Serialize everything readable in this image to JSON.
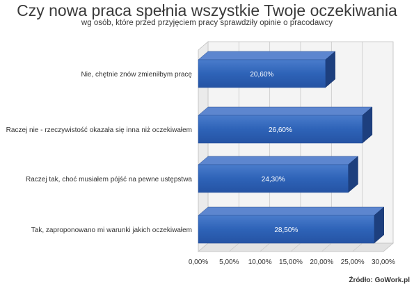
{
  "title": "Czy nowa praca spełnia wszystkie Twoje oczekiwania",
  "subtitle": "wg osób, które przed przyjęciem pracy sprawdziły opinie o pracodawcy",
  "source": "Źródło: GoWork.pl",
  "colors": {
    "bar_front": "#2e63b8",
    "bar_top": "#5d86cf",
    "bar_side": "#1d3f7e",
    "grid": "#c8c8c8",
    "wall": "#f4f4f4"
  },
  "chart_data": {
    "type": "bar",
    "orientation": "horizontal",
    "style": "3d",
    "categories": [
      "Nie, chętnie znów zmieniłbym pracę",
      "Raczej nie - rzeczywistość okazała się inna niż oczekiwałem",
      "Raczej tak, choć musiałem pójść na pewne ustępstwa",
      "Tak, zaproponowano mi warunki jakich oczekiwałem"
    ],
    "values": [
      20.6,
      26.6,
      24.3,
      28.5
    ],
    "value_labels": [
      "20,60%",
      "26,60%",
      "24,30%",
      "28,50%"
    ],
    "xlim": [
      0,
      30
    ],
    "x_ticks": [
      "0,00%",
      "5,00%",
      "10,00%",
      "15,00%",
      "20,00%",
      "25,00%",
      "30,00%"
    ],
    "grid": true,
    "legend": "none"
  }
}
